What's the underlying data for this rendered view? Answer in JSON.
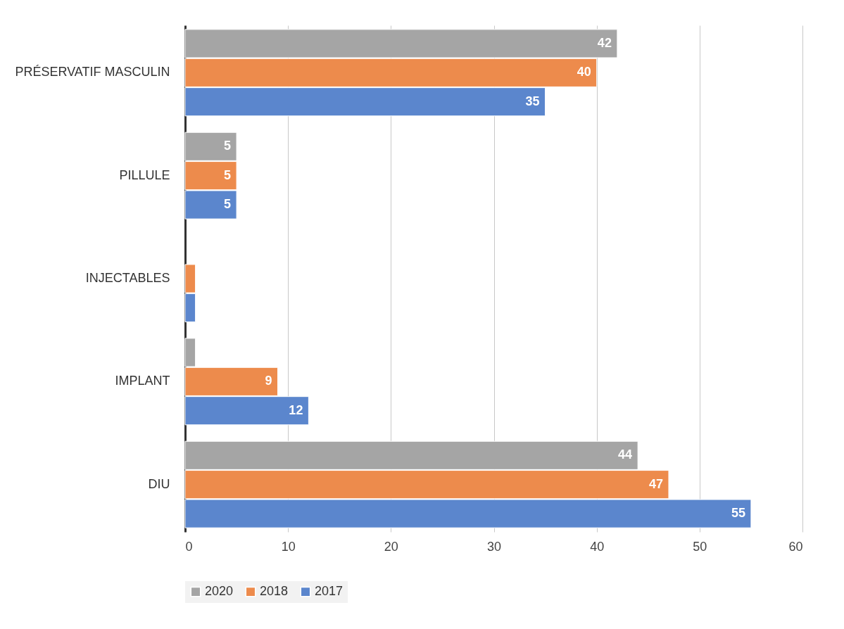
{
  "chart_data": {
    "type": "bar",
    "orientation": "horizontal",
    "categories": [
      "PRÉSERVATIF MASCULIN",
      "PILLULE",
      "INJECTABLES",
      "IMPLANT",
      "DIU"
    ],
    "series": [
      {
        "name": "2020",
        "color": "#a5a5a5",
        "values": [
          42,
          5,
          null,
          1,
          44
        ],
        "value_labels": [
          "42",
          "5",
          null,
          null,
          "44"
        ]
      },
      {
        "name": "2018",
        "color": "#ed8b4c",
        "values": [
          40,
          5,
          1,
          9,
          47
        ],
        "value_labels": [
          "40",
          "5",
          null,
          "9",
          "47"
        ]
      },
      {
        "name": "2017",
        "color": "#5b86cd",
        "values": [
          35,
          5,
          1,
          12,
          55
        ],
        "value_labels": [
          "35",
          "5",
          null,
          "12",
          "55"
        ]
      }
    ],
    "xlim": [
      0,
      60
    ],
    "xticks": [
      0,
      10,
      20,
      30,
      40,
      50,
      60
    ],
    "grid": "x",
    "legend": "bottom"
  }
}
